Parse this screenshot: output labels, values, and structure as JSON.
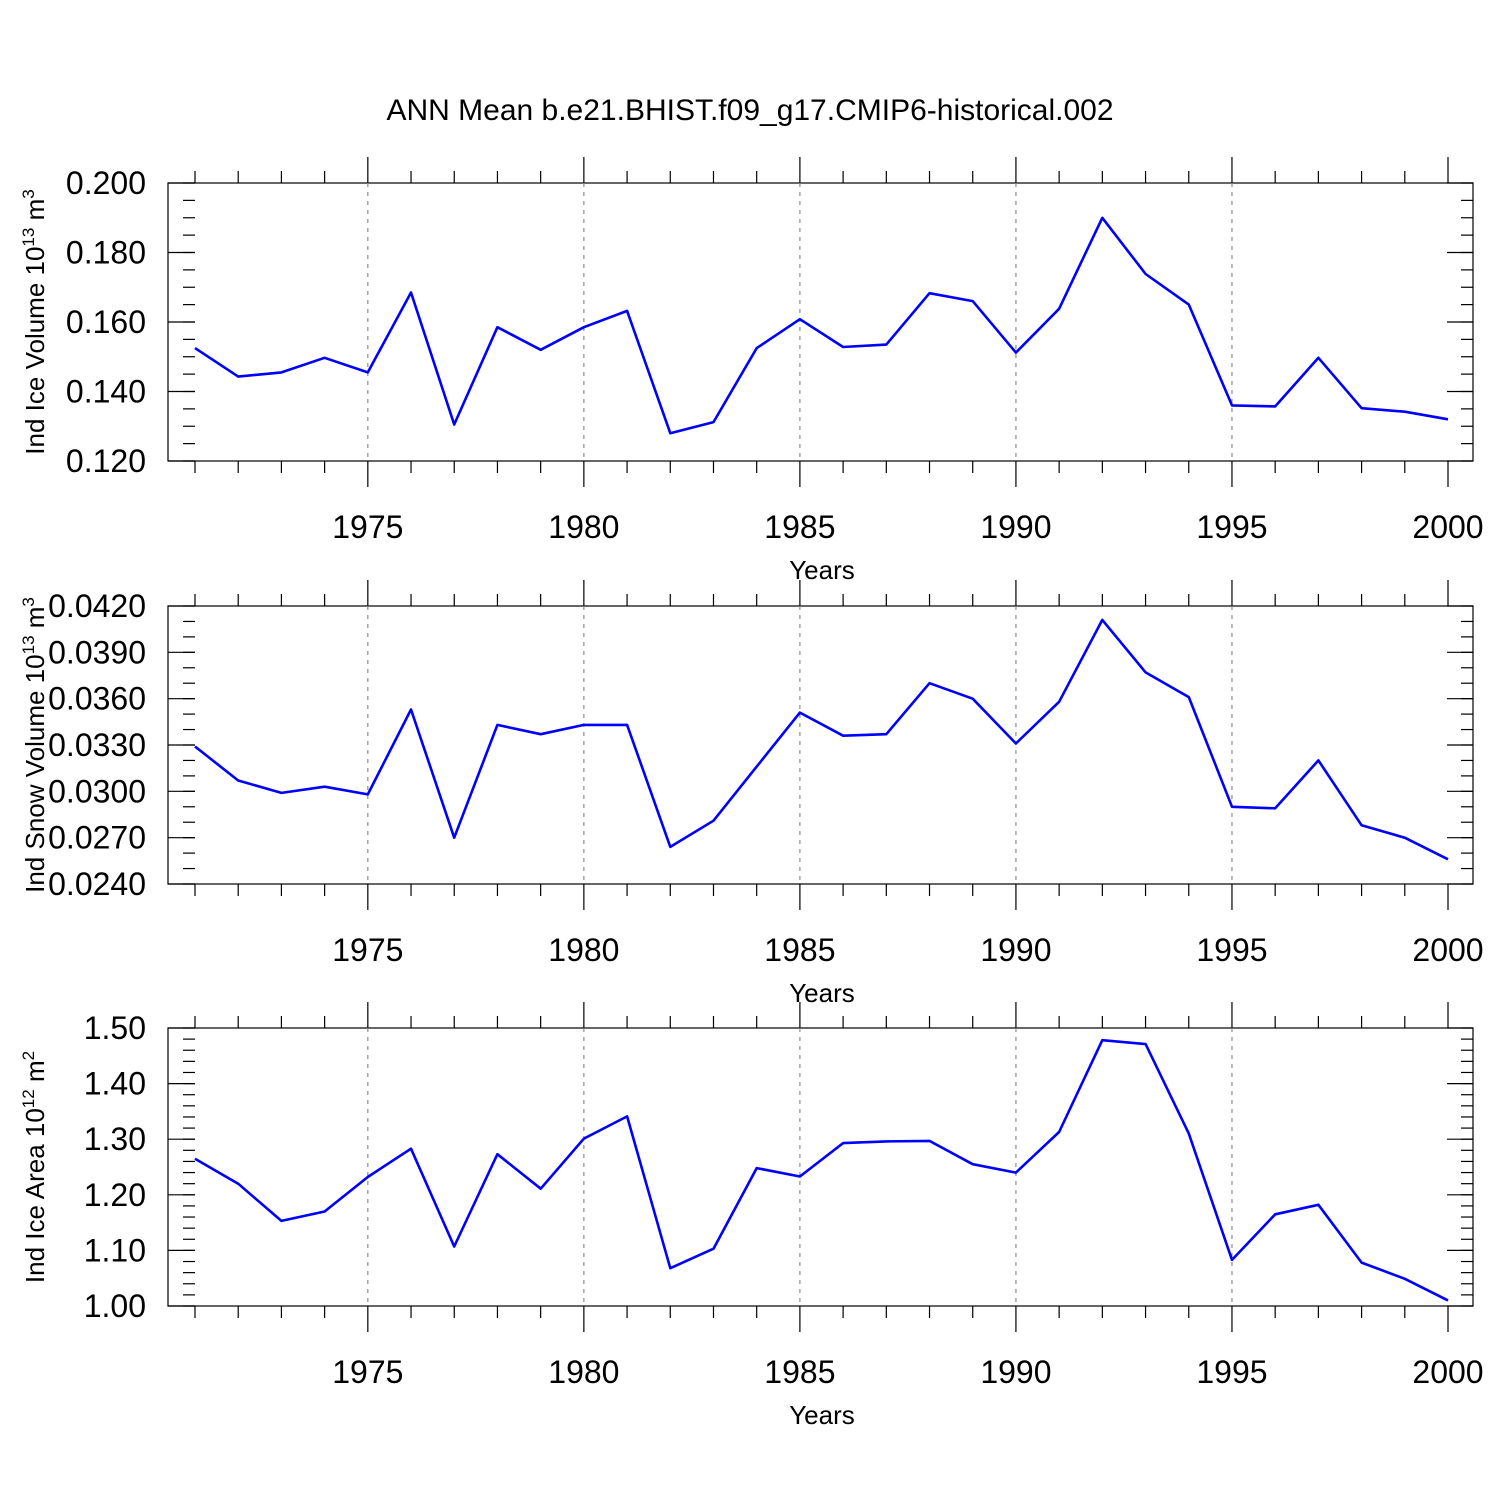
{
  "figure": {
    "title": "ANN Mean b.e21.BHIST.f09_g17.CMIP6-historical.002"
  },
  "chart_data": [
    {
      "type": "line",
      "title": "",
      "xlabel": "Years",
      "ylabel": {
        "text": "Ind Ice Volume 10",
        "sup": "13",
        "unit": " m",
        "unit_sup": "3"
      },
      "xlim": [
        1971,
        2000
      ],
      "ylim": [
        0.12,
        0.2
      ],
      "xticks": [
        1975,
        1980,
        1985,
        1990,
        1995,
        2000
      ],
      "yticks": [
        "0.120",
        "0.140",
        "0.160",
        "0.180",
        "0.200"
      ],
      "ytick_values": [
        0.12,
        0.14,
        0.16,
        0.18,
        0.2
      ],
      "y_minor_step": 0.005,
      "grid": "vertical dashed at labeled years",
      "color": "#0000ff",
      "x": [
        1971,
        1972,
        1973,
        1974,
        1975,
        1976,
        1977,
        1978,
        1979,
        1980,
        1981,
        1982,
        1983,
        1984,
        1985,
        1986,
        1987,
        1988,
        1989,
        1990,
        1991,
        1992,
        1993,
        1994,
        1995,
        1996,
        1997,
        1998,
        1999,
        2000
      ],
      "values": [
        0.1525,
        0.1443,
        0.1455,
        0.1497,
        0.1455,
        0.1685,
        0.1305,
        0.1585,
        0.152,
        0.1585,
        0.1632,
        0.128,
        0.1312,
        0.1525,
        0.1608,
        0.1528,
        0.1535,
        0.1683,
        0.166,
        0.1512,
        0.1638,
        0.19,
        0.1738,
        0.165,
        0.136,
        0.1357,
        0.1497,
        0.1352,
        0.1342,
        0.132
      ]
    },
    {
      "type": "line",
      "title": "",
      "xlabel": "Years",
      "ylabel": {
        "text": "Ind Snow Volume 10",
        "sup": "13",
        "unit": " m",
        "unit_sup": "3"
      },
      "xlim": [
        1971,
        2000
      ],
      "ylim": [
        0.024,
        0.042
      ],
      "xticks": [
        1975,
        1980,
        1985,
        1990,
        1995,
        2000
      ],
      "yticks": [
        "0.0240",
        "0.0270",
        "0.0300",
        "0.0330",
        "0.0360",
        "0.0390",
        "0.0420"
      ],
      "ytick_values": [
        0.024,
        0.027,
        0.03,
        0.033,
        0.036,
        0.039,
        0.042
      ],
      "y_minor_step": 0.001,
      "grid": "vertical dashed at labeled years",
      "color": "#0000ff",
      "x": [
        1971,
        1972,
        1973,
        1974,
        1975,
        1976,
        1977,
        1978,
        1979,
        1980,
        1981,
        1982,
        1983,
        1984,
        1985,
        1986,
        1987,
        1988,
        1989,
        1990,
        1991,
        1992,
        1993,
        1994,
        1995,
        1996,
        1997,
        1998,
        1999,
        2000
      ],
      "values": [
        0.0329,
        0.0307,
        0.0299,
        0.0303,
        0.0298,
        0.0353,
        0.027,
        0.0343,
        0.0337,
        0.0343,
        0.0343,
        0.0264,
        0.0281,
        0.0316,
        0.0351,
        0.0336,
        0.0337,
        0.037,
        0.036,
        0.0331,
        0.0358,
        0.0411,
        0.0377,
        0.0361,
        0.029,
        0.0289,
        0.032,
        0.0278,
        0.027,
        0.0256
      ]
    },
    {
      "type": "line",
      "title": "",
      "xlabel": "Years",
      "ylabel": {
        "text": "Ind Ice Area 10",
        "sup": "12",
        "unit": " m",
        "unit_sup": "2"
      },
      "xlim": [
        1971,
        2000
      ],
      "ylim": [
        1.0,
        1.5
      ],
      "xticks": [
        1975,
        1980,
        1985,
        1990,
        1995,
        2000
      ],
      "yticks": [
        "1.00",
        "1.10",
        "1.20",
        "1.30",
        "1.40",
        "1.50"
      ],
      "ytick_values": [
        1.0,
        1.1,
        1.2,
        1.3,
        1.4,
        1.5
      ],
      "y_minor_step": 0.02,
      "grid": "vertical dashed at labeled years",
      "color": "#0000ff",
      "x": [
        1971,
        1972,
        1973,
        1974,
        1975,
        1976,
        1977,
        1978,
        1979,
        1980,
        1981,
        1982,
        1983,
        1984,
        1985,
        1986,
        1987,
        1988,
        1989,
        1990,
        1991,
        1992,
        1993,
        1994,
        1995,
        1996,
        1997,
        1998,
        1999,
        2000
      ],
      "values": [
        1.265,
        1.22,
        1.153,
        1.17,
        1.232,
        1.283,
        1.107,
        1.273,
        1.211,
        1.301,
        1.341,
        1.068,
        1.103,
        1.248,
        1.233,
        1.293,
        1.296,
        1.297,
        1.255,
        1.24,
        1.313,
        1.478,
        1.471,
        1.31,
        1.083,
        1.165,
        1.182,
        1.078,
        1.049,
        1.01
      ]
    }
  ]
}
